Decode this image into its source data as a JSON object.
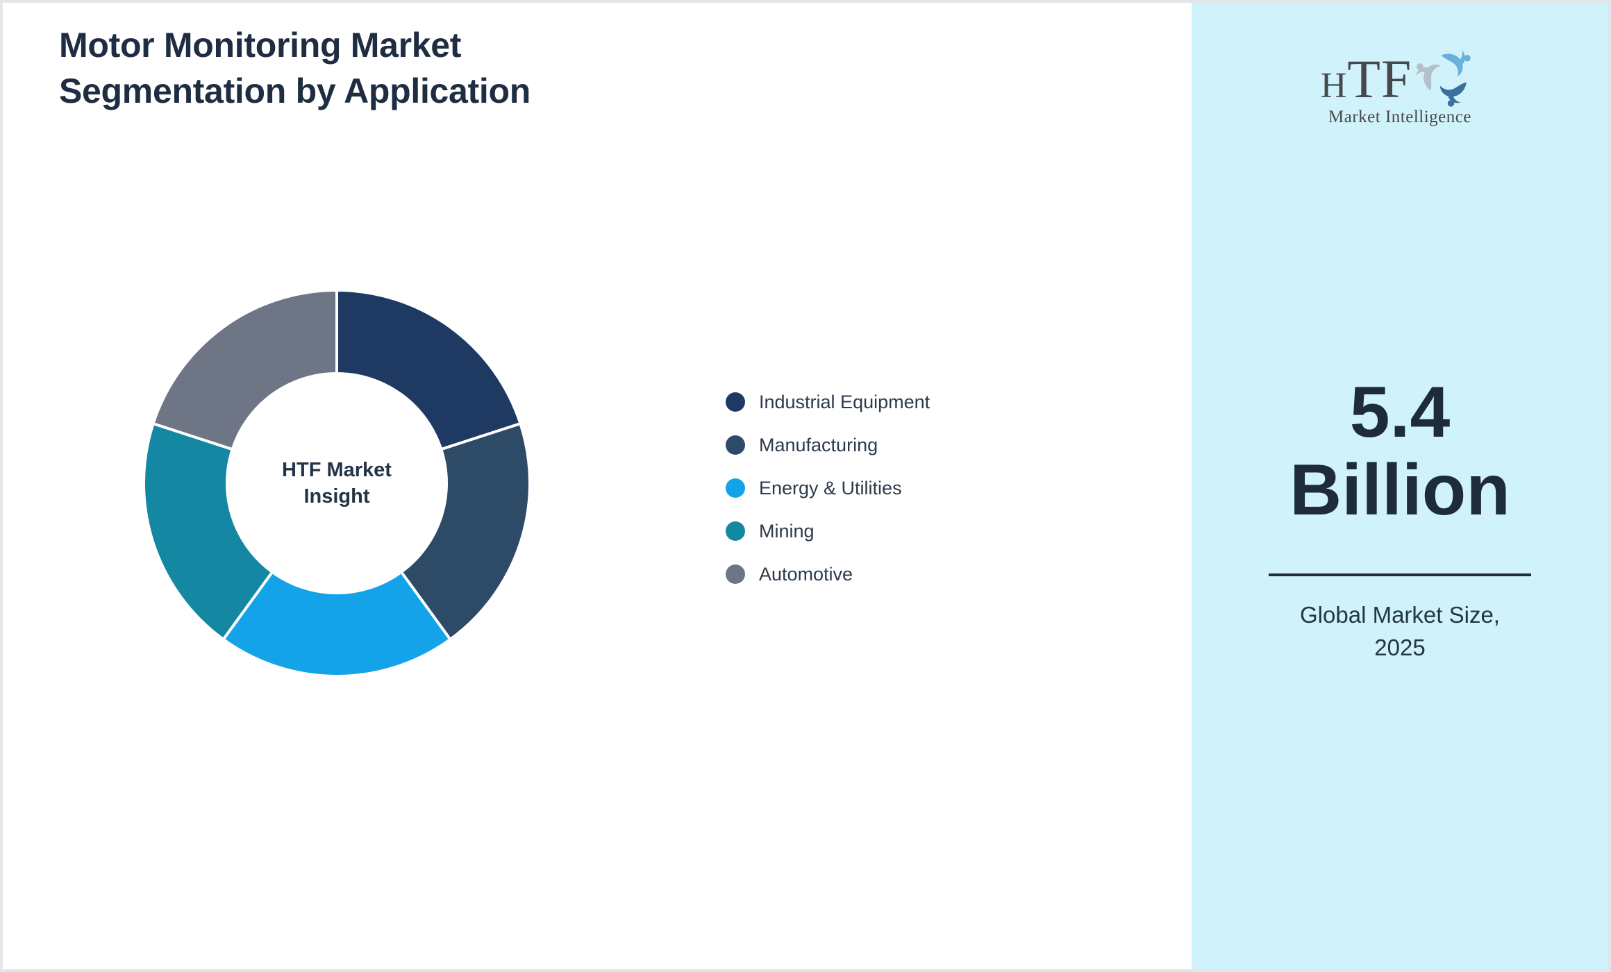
{
  "title": {
    "line1": "Motor Monitoring Market",
    "line2": "Segmentation by Application"
  },
  "chart_data": {
    "type": "pie",
    "subtype": "donut",
    "title": "Motor Monitoring Market Segmentation by Application",
    "categories": [
      "Industrial Equipment",
      "Manufacturing",
      "Energy & Utilities",
      "Mining",
      "Automotive"
    ],
    "values": [
      20,
      20,
      20,
      20,
      20
    ],
    "colors": [
      "#1e3a63",
      "#2d4a66",
      "#14a3e8",
      "#1487a3",
      "#6e7585"
    ],
    "start_angle_deg": 0,
    "direction": "clockwise",
    "legend_position": "right",
    "center_label_lines": [
      "HTF Market",
      "Insight"
    ]
  },
  "sidebar": {
    "background": "#d0f3fb",
    "logo": {
      "text_h": "H",
      "text_tf": "TF",
      "subtext": "Market Intelligence",
      "swirl_colors": [
        "#69b1d9",
        "#3a6f9e",
        "#b3bfc9"
      ]
    },
    "market_size": {
      "value": "5.4",
      "unit": "Billion",
      "caption_line1": "Global Market Size,",
      "caption_line2": "2025"
    }
  },
  "theme": {
    "title_color": "#1f2d42",
    "text_color": "#243447",
    "big_number_color": "#1d2b3c",
    "frame_border_color": "#e3e5e9",
    "panel_background": "#ffffff"
  }
}
